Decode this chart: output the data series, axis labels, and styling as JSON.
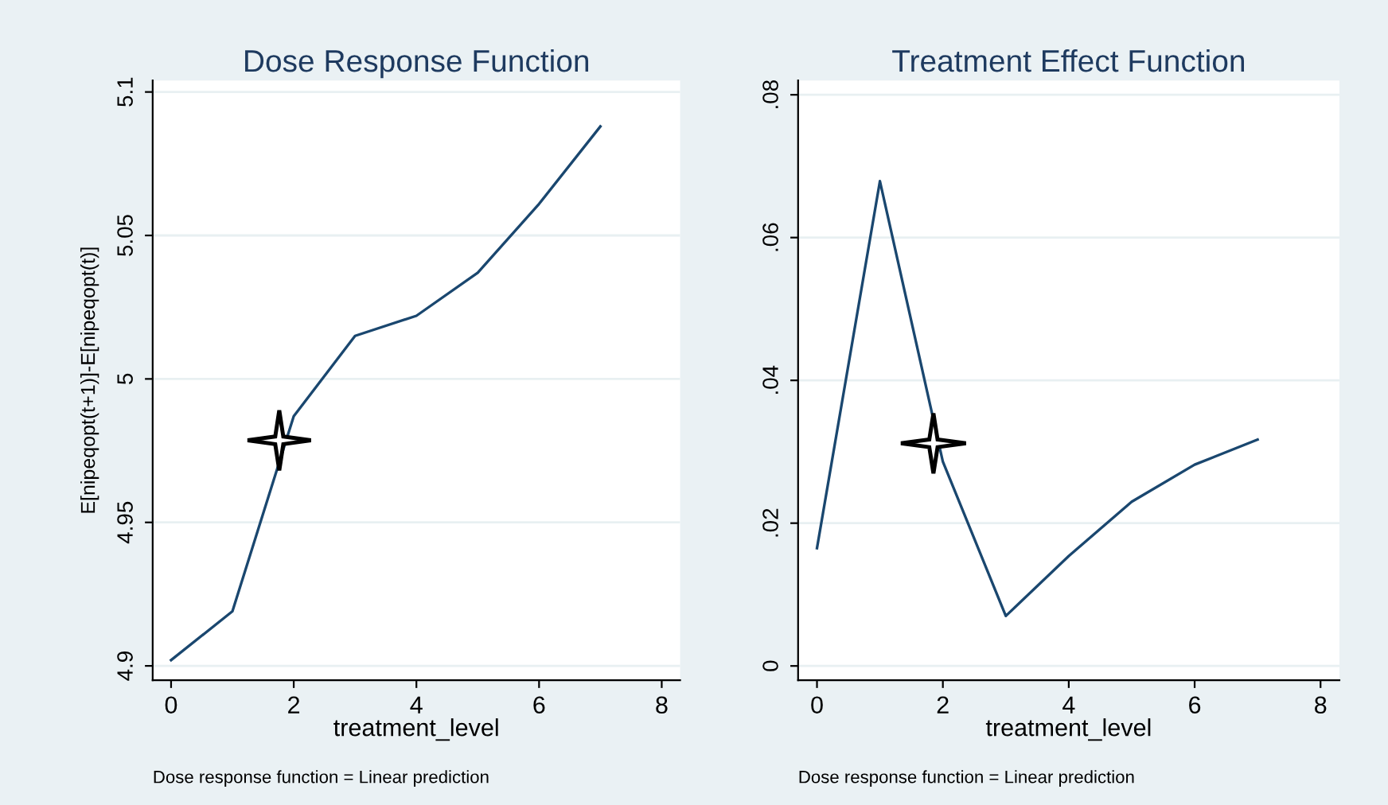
{
  "chart_data": [
    {
      "type": "line",
      "title": "Dose Response Function",
      "xlabel": "treatment_level",
      "ylabel": "E[nipeqopt(t+1)]-E[nipeqopt(t)]",
      "annotations": [
        "Dose response function = Linear prediction"
      ],
      "x": [
        0,
        1,
        2,
        3,
        4,
        5,
        6,
        7
      ],
      "series": [
        {
          "color": "#1a476f",
          "values": [
            4.902,
            4.919,
            4.987,
            5.015,
            5.022,
            5.037,
            5.061,
            5.088
          ]
        }
      ],
      "xlim": [
        -0.3,
        8.3
      ],
      "xticks": [
        0,
        2,
        4,
        6,
        8
      ],
      "ylim": [
        4.895,
        5.104
      ],
      "yticks": [
        4.9,
        4.95,
        5,
        5.05,
        5.1
      ],
      "grid": "y",
      "marker": "none",
      "line_style": "solid",
      "legend": false
    },
    {
      "type": "line",
      "title": "Treatment Effect Function",
      "xlabel": "treatment_level",
      "annotations": [
        "Dose response function = Linear prediction"
      ],
      "x": [
        0,
        1,
        2,
        3,
        4,
        5,
        6,
        7
      ],
      "series": [
        {
          "color": "#1a476f",
          "values": [
            0.0165,
            0.0679,
            0.0286,
            0.007,
            0.0154,
            0.023,
            0.0282,
            0.0317
          ]
        }
      ],
      "xlim": [
        -0.3,
        8.3
      ],
      "xticks": [
        0,
        2,
        4,
        6,
        8
      ],
      "ylim": [
        -0.002,
        0.082
      ],
      "yticks": [
        0,
        {
          "value": 0.02,
          "label": ".02"
        },
        {
          "value": 0.04,
          "label": ".04"
        },
        {
          "value": 0.06,
          "label": ".06"
        },
        {
          "value": 0.08,
          "label": ".08"
        }
      ],
      "grid": "y",
      "marker": "none",
      "line_style": "solid",
      "legend": false
    }
  ]
}
